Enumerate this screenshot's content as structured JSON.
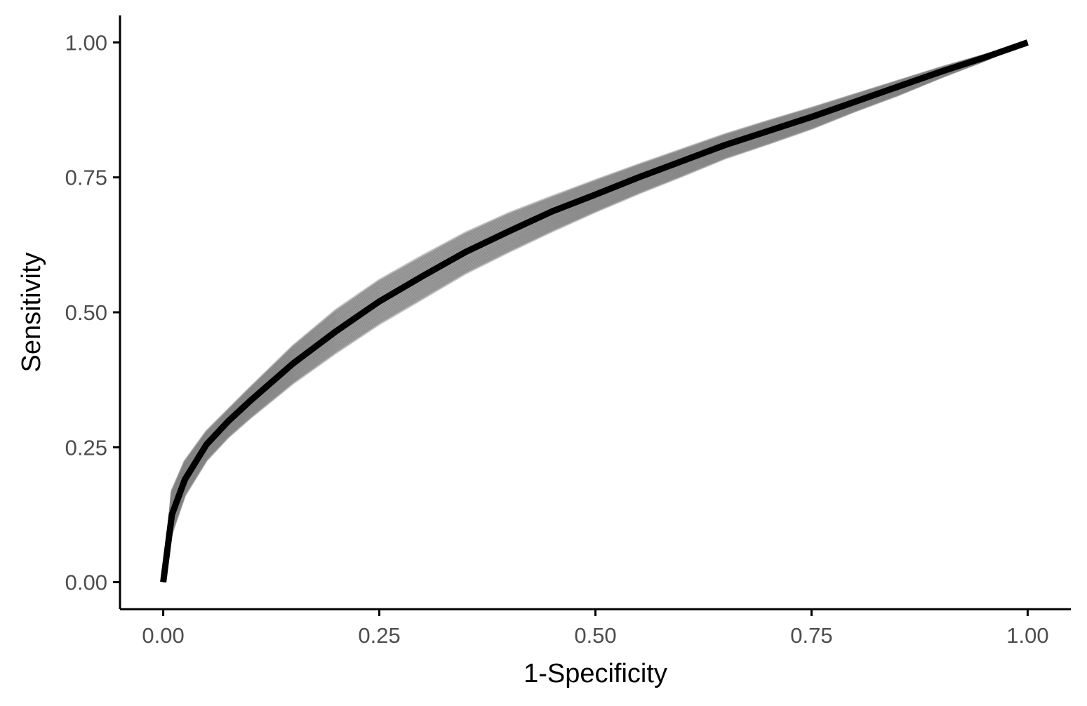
{
  "chart_data": {
    "type": "line",
    "title": "",
    "xlabel": "1-Specificity",
    "ylabel": "Sensitivity",
    "xlim": [
      -0.05,
      1.05
    ],
    "ylim": [
      -0.05,
      1.05
    ],
    "x_ticks": [
      0,
      0.25,
      0.5,
      0.75,
      1
    ],
    "x_tick_labels": [
      "0.00",
      "0.25",
      "0.50",
      "0.75",
      "1.00"
    ],
    "y_ticks": [
      0,
      0.25,
      0.5,
      0.75,
      1
    ],
    "y_tick_labels": [
      "0.00",
      "0.25",
      "0.50",
      "0.75",
      "1.00"
    ],
    "grid": false,
    "legend": "none",
    "colors": {
      "band": "#808080",
      "main": "#000000",
      "axis": "#000000",
      "tick_text": "#4d4d4d"
    },
    "main_curve": {
      "x": [
        0,
        0.01,
        0.025,
        0.05,
        0.075,
        0.1,
        0.15,
        0.2,
        0.25,
        0.3,
        0.35,
        0.4,
        0.45,
        0.5,
        0.55,
        0.6,
        0.65,
        0.7,
        0.75,
        0.8,
        0.85,
        0.9,
        0.95,
        1
      ],
      "y": [
        0,
        0.125,
        0.19,
        0.255,
        0.298,
        0.335,
        0.405,
        0.465,
        0.52,
        0.567,
        0.612,
        0.65,
        0.687,
        0.718,
        0.75,
        0.78,
        0.81,
        0.836,
        0.862,
        0.89,
        0.918,
        0.946,
        0.972,
        1
      ]
    },
    "band_upper": {
      "x": [
        0,
        0.01,
        0.025,
        0.05,
        0.075,
        0.1,
        0.15,
        0.2,
        0.25,
        0.3,
        0.35,
        0.4,
        0.45,
        0.5,
        0.55,
        0.6,
        0.65,
        0.7,
        0.75,
        0.8,
        0.85,
        0.9,
        0.95,
        1
      ],
      "y": [
        0,
        0.17,
        0.225,
        0.28,
        0.32,
        0.36,
        0.438,
        0.505,
        0.56,
        0.605,
        0.648,
        0.684,
        0.715,
        0.745,
        0.774,
        0.802,
        0.83,
        0.855,
        0.879,
        0.904,
        0.929,
        0.954,
        0.977,
        1
      ]
    },
    "band_lower": {
      "x": [
        0,
        0.01,
        0.025,
        0.05,
        0.075,
        0.1,
        0.15,
        0.2,
        0.25,
        0.3,
        0.35,
        0.4,
        0.45,
        0.5,
        0.55,
        0.6,
        0.65,
        0.7,
        0.75,
        0.8,
        0.85,
        0.9,
        0.95,
        1
      ],
      "y": [
        0,
        0.09,
        0.16,
        0.225,
        0.268,
        0.303,
        0.368,
        0.425,
        0.478,
        0.525,
        0.572,
        0.612,
        0.65,
        0.686,
        0.72,
        0.752,
        0.785,
        0.812,
        0.84,
        0.872,
        0.902,
        0.935,
        0.966,
        1
      ]
    },
    "band_curves_count": 30
  }
}
